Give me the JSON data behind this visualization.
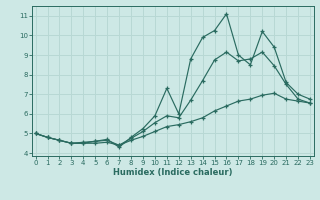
{
  "xlabel": "Humidex (Indice chaleur)",
  "bg_color": "#cde8e5",
  "line_color": "#2a6b60",
  "grid_color": "#b8d8d4",
  "x": [
    0,
    1,
    2,
    3,
    4,
    5,
    6,
    7,
    8,
    9,
    10,
    11,
    12,
    13,
    14,
    15,
    16,
    17,
    18,
    19,
    20,
    21,
    22,
    23
  ],
  "y_top": [
    5.0,
    4.8,
    4.65,
    4.5,
    4.55,
    4.6,
    4.7,
    4.3,
    4.8,
    5.25,
    5.9,
    7.3,
    6.0,
    8.8,
    9.9,
    10.25,
    11.1,
    9.0,
    8.5,
    10.2,
    9.4,
    7.6,
    7.0,
    6.75
  ],
  "y_mid": [
    5.0,
    4.8,
    4.65,
    4.5,
    4.5,
    4.6,
    4.65,
    4.4,
    4.75,
    5.1,
    5.55,
    5.9,
    5.8,
    6.7,
    7.7,
    8.75,
    9.15,
    8.7,
    8.8,
    9.15,
    8.45,
    7.5,
    6.75,
    6.55
  ],
  "y_bot": [
    5.0,
    4.8,
    4.65,
    4.5,
    4.5,
    4.5,
    4.55,
    4.4,
    4.65,
    4.85,
    5.1,
    5.35,
    5.45,
    5.6,
    5.8,
    6.15,
    6.4,
    6.65,
    6.75,
    6.95,
    7.05,
    6.75,
    6.65,
    6.55
  ],
  "xlim": [
    -0.3,
    23.3
  ],
  "ylim": [
    3.85,
    11.5
  ],
  "yticks": [
    4,
    5,
    6,
    7,
    8,
    9,
    10,
    11
  ],
  "xticks": [
    0,
    1,
    2,
    3,
    4,
    5,
    6,
    7,
    8,
    9,
    10,
    11,
    12,
    13,
    14,
    15,
    16,
    17,
    18,
    19,
    20,
    21,
    22,
    23
  ]
}
